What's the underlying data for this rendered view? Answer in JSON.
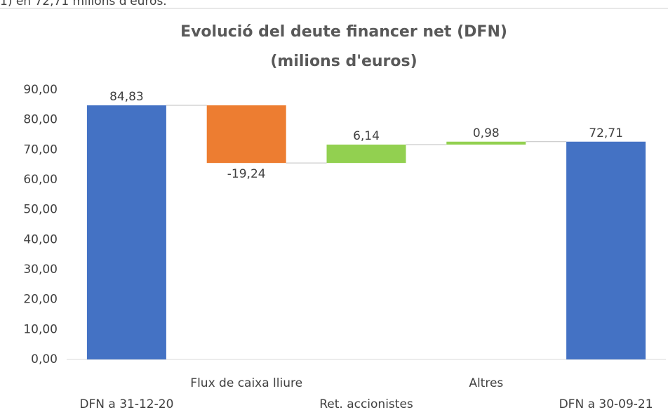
{
  "top_text": "1) en 72,71 milions d'euros.",
  "chart_data": {
    "type": "waterfall",
    "title": "Evolució del deute financer net (DFN)",
    "subtitle": "(milions d'euros)",
    "categories": [
      "DFN a 31-12-20",
      "Flux de caixa lliure",
      "Ret. accionistes",
      "Altres",
      "DFN a 30-09-21"
    ],
    "values": [
      84.83,
      -19.24,
      6.14,
      0.98,
      72.71
    ],
    "value_labels": [
      "84,83",
      "-19,24",
      "6,14",
      "0,98",
      "72,71"
    ],
    "measure": [
      "absolute",
      "relative",
      "relative",
      "relative",
      "absolute"
    ],
    "colors": [
      "#4472c4",
      "#ed7d31",
      "#92d050",
      "#92d050",
      "#4472c4"
    ],
    "ylim": [
      0,
      90
    ],
    "yticks": [
      {
        "value": 0,
        "label": "0,00"
      },
      {
        "value": 10,
        "label": "10,00"
      },
      {
        "value": 20,
        "label": "20,00"
      },
      {
        "value": 30,
        "label": "30,00"
      },
      {
        "value": 40,
        "label": "40,00"
      },
      {
        "value": 50,
        "label": "50,00"
      },
      {
        "value": 60,
        "label": "60,00"
      },
      {
        "value": 70,
        "label": "70,00"
      },
      {
        "value": 80,
        "label": "80,00"
      },
      {
        "value": 90,
        "label": "90,00"
      }
    ]
  }
}
